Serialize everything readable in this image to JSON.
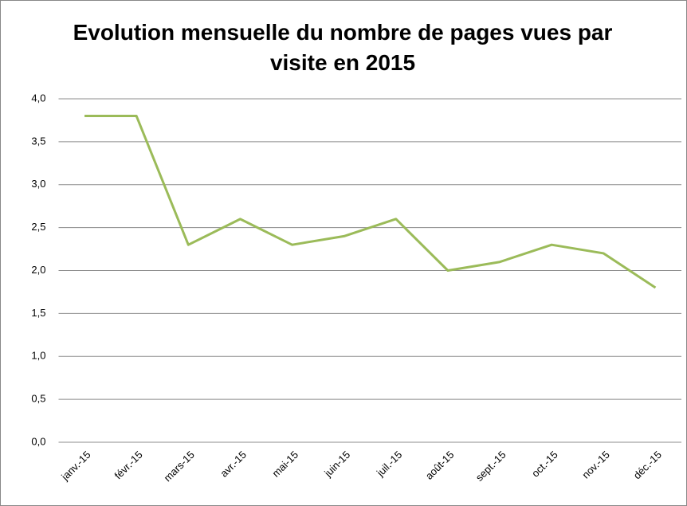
{
  "chart_data": {
    "type": "line",
    "title": "Evolution mensuelle du nombre de pages vues par visite en 2015",
    "categories": [
      "janv.-15",
      "févr.-15",
      "mars-15",
      "avr.-15",
      "mai-15",
      "juin-15",
      "juil.-15",
      "août-15",
      "sept.-15",
      "oct.-15",
      "nov.-15",
      "déc.-15"
    ],
    "values": [
      3.8,
      3.8,
      2.3,
      2.6,
      2.3,
      2.4,
      2.6,
      2.0,
      2.1,
      2.3,
      2.2,
      1.8
    ],
    "color": "#9bbb59",
    "ylim": [
      0,
      4
    ],
    "yticks": [
      {
        "value": 0,
        "label": "0,0"
      },
      {
        "value": 0.5,
        "label": "0,5"
      },
      {
        "value": 1,
        "label": "1,0"
      },
      {
        "value": 1.5,
        "label": "1,5"
      },
      {
        "value": 2,
        "label": "2,0"
      },
      {
        "value": 2.5,
        "label": "2,5"
      },
      {
        "value": 3,
        "label": "3,0"
      },
      {
        "value": 3.5,
        "label": "3,5"
      },
      {
        "value": 4,
        "label": "4,0"
      }
    ],
    "grid": true
  }
}
